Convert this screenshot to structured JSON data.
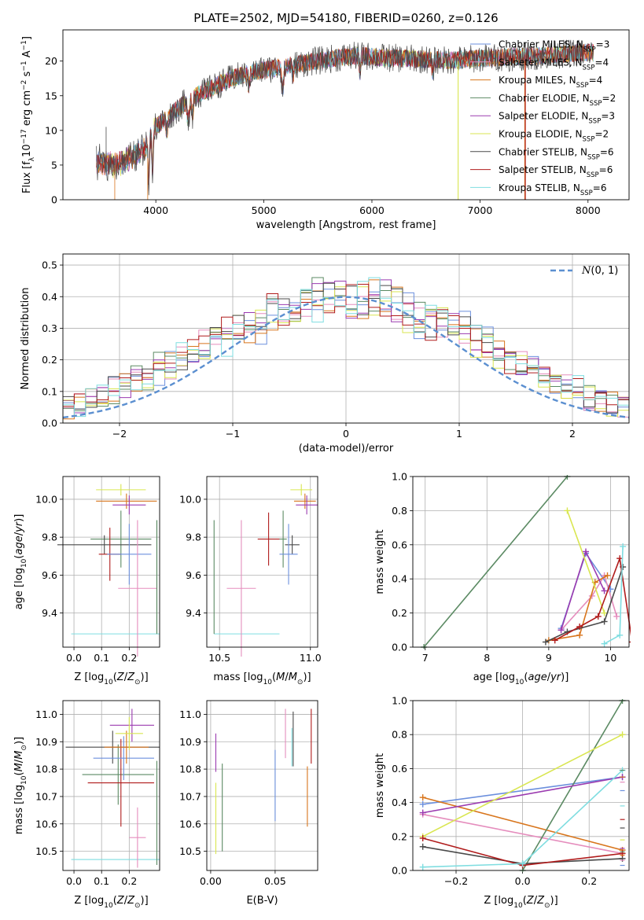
{
  "figure": {
    "title": "PLATE=2502, MJD=54180, FIBERID=0260, z=0.126"
  },
  "models": [
    {
      "name": "Chabrier MILES, N",
      "nssp": "=3",
      "color": "#6b8fdd"
    },
    {
      "name": "Salpeter MILES, N",
      "nssp": "=4",
      "color": "#e58dbd"
    },
    {
      "name": "Kroupa MILES, N",
      "nssp": "=4",
      "color": "#d8751c"
    },
    {
      "name": "Chabrier ELODIE, N",
      "nssp": "=2",
      "color": "#5b8a63"
    },
    {
      "name": "Salpeter ELODIE, N",
      "nssp": "=3",
      "color": "#9b3bb0"
    },
    {
      "name": "Kroupa ELODIE, N",
      "nssp": "=2",
      "color": "#d9e650"
    },
    {
      "name": "Chabrier STELIB, N",
      "nssp": "=6",
      "color": "#4a4a4a"
    },
    {
      "name": "Salpeter STELIB, N",
      "nssp": "=6",
      "color": "#b01c1c"
    },
    {
      "name": "Kroupa STELIB, N",
      "nssp": "=6",
      "color": "#7fdde0"
    }
  ],
  "chart_data": [
    {
      "id": "spectrum",
      "type": "line",
      "xlabel": "wavelength [Angstrom, rest frame]",
      "ylabel": "Flux [f_λ 10^-17 erg cm^-2 s^-1 A^-1]",
      "xlim": [
        3140,
        8380
      ],
      "ylim": [
        0,
        24.5
      ],
      "xticks": [
        4000,
        5000,
        6000,
        7000,
        8000
      ],
      "yticks": [
        0,
        5,
        10,
        15,
        20
      ],
      "legend": "right",
      "x_range": [
        3450,
        8050
      ],
      "continuum_knots": [
        [
          3450,
          5.4
        ],
        [
          3600,
          5.0
        ],
        [
          3700,
          5.5
        ],
        [
          3800,
          6.3
        ],
        [
          3900,
          7.5
        ],
        [
          4000,
          10.5
        ],
        [
          4150,
          12.4
        ],
        [
          4300,
          14.4
        ],
        [
          4500,
          16.0
        ],
        [
          4700,
          17.5
        ],
        [
          4900,
          18.4
        ],
        [
          5100,
          19.0
        ],
        [
          5400,
          19.8
        ],
        [
          5700,
          20.5
        ],
        [
          5900,
          20.8
        ],
        [
          6100,
          20.5
        ],
        [
          6400,
          20.3
        ],
        [
          6700,
          20.1
        ],
        [
          7000,
          20.4
        ],
        [
          7300,
          20.6
        ],
        [
          7600,
          20.8
        ],
        [
          7900,
          21.2
        ],
        [
          8050,
          21.2
        ]
      ],
      "absorption_features": [
        [
          3934,
          6.0,
          8
        ],
        [
          3969,
          6.0,
          8
        ],
        [
          4102,
          2.0,
          10
        ],
        [
          4300,
          3.0,
          15
        ],
        [
          4340,
          2.5,
          10
        ],
        [
          4861,
          2.0,
          10
        ],
        [
          5175,
          3.0,
          15
        ],
        [
          5270,
          1.5,
          10
        ],
        [
          5890,
          2.5,
          10
        ],
        [
          6563,
          2.0,
          10
        ]
      ],
      "noise_amplitude": 1.3,
      "deep_spikes": [
        [
          3940,
          0
        ],
        [
          6800,
          0
        ],
        [
          7420,
          0
        ]
      ],
      "vlines": [
        [
          6798,
          "#d9e650"
        ],
        [
          7415,
          "#d8751c"
        ],
        [
          7420,
          "#b01c1c"
        ]
      ]
    },
    {
      "id": "residuals",
      "type": "histogram",
      "xlabel": "(data-model)/error",
      "ylabel": "Normed distribution",
      "xlim": [
        -2.5,
        2.5
      ],
      "ylim": [
        0,
        0.535
      ],
      "xticks": [
        -2,
        -1,
        0,
        1,
        2
      ],
      "yticks": [
        0.0,
        0.1,
        0.2,
        0.3,
        0.4,
        0.5
      ],
      "grid": true,
      "bin_width": 0.1,
      "reference": {
        "label": "N(0,1)",
        "style": "dashed",
        "color": "#5b8fd0"
      },
      "legend": "top-right",
      "bin_values": {
        "model_a": [
          0.02,
          0.02,
          0.03,
          0.03,
          0.04,
          0.05,
          0.05,
          0.07,
          0.09,
          0.11,
          0.12,
          0.13,
          0.15,
          0.16,
          0.18,
          0.21,
          0.21,
          0.24,
          0.27,
          0.26,
          0.3,
          0.31,
          0.3,
          0.34,
          0.38,
          0.37,
          0.39,
          0.38,
          0.4,
          0.41,
          0.38,
          0.39,
          0.43,
          0.4,
          0.38,
          0.36,
          0.31,
          0.33,
          0.33,
          0.31,
          0.3,
          0.28,
          0.26,
          0.22,
          0.21,
          0.19,
          0.18,
          0.16,
          0.13,
          0.12,
          0.11,
          0.08,
          0.07,
          0.06,
          0.05,
          0.04,
          0.03,
          0.03,
          0.02,
          0.02
        ],
        "model_b": [
          0.02,
          0.02,
          0.03,
          0.04,
          0.04,
          0.05,
          0.06,
          0.07,
          0.09,
          0.1,
          0.12,
          0.14,
          0.15,
          0.18,
          0.18,
          0.2,
          0.23,
          0.25,
          0.26,
          0.3,
          0.29,
          0.32,
          0.34,
          0.35,
          0.35,
          0.38,
          0.37,
          0.41,
          0.4,
          0.42,
          0.41,
          0.4,
          0.39,
          0.38,
          0.38,
          0.34,
          0.35,
          0.31,
          0.32,
          0.29,
          0.28,
          0.25,
          0.24,
          0.22,
          0.19,
          0.19,
          0.16,
          0.15,
          0.12,
          0.12,
          0.1,
          0.08,
          0.07,
          0.06,
          0.05,
          0.04,
          0.03,
          0.03,
          0.02,
          0.02
        ]
      }
    },
    {
      "id": "age_vs_Z",
      "type": "errorbar",
      "xlabel": "Z [log10(Z/Z⊙)]",
      "ylabel": "age  [log10(age/yr)]",
      "xlim": [
        -0.04,
        0.31
      ],
      "ylim": [
        9.22,
        10.12
      ],
      "xticks": [
        0.0,
        0.1,
        0.2
      ],
      "yticks": [
        9.4,
        9.6,
        9.8,
        10.0
      ],
      "grid": true,
      "points": [
        [
          0.17,
          9.79,
          0.11,
          0.15
        ],
        [
          0.11,
          9.76,
          0.17,
          0.05
        ],
        [
          0.13,
          9.71,
          0.04,
          0.14
        ],
        [
          0.15,
          9.29,
          0.16,
          0.0
        ],
        [
          0.2,
          9.71,
          0.08,
          0.16
        ],
        [
          0.23,
          9.53,
          0.07,
          0.36
        ],
        [
          0.19,
          9.99,
          0.11,
          0.04
        ],
        [
          0.2,
          9.97,
          0.06,
          0.05
        ],
        [
          0.17,
          10.05,
          0.09,
          0.03
        ]
      ],
      "v_only": [
        [
          0.3,
          9.59,
          0.3
        ],
        [
          0.3,
          9.59,
          0.3
        ]
      ]
    },
    {
      "id": "age_vs_mass",
      "type": "errorbar",
      "xlabel": "mass [log10(M/M⊙)]",
      "ylabel": "",
      "xlim": [
        10.43,
        11.04
      ],
      "ylim": [
        9.22,
        10.12
      ],
      "xticks": [
        10.5,
        11.0
      ],
      "yticks": [
        9.4,
        9.6,
        9.8,
        10.0
      ],
      "grid": true,
      "points": [
        [
          10.85,
          9.79,
          0.02,
          0.15
        ],
        [
          10.9,
          9.76,
          0.04,
          0.05
        ],
        [
          10.77,
          9.79,
          0.06,
          0.14
        ],
        [
          10.65,
          9.29,
          0.18,
          0.0
        ],
        [
          10.88,
          9.71,
          0.05,
          0.16
        ],
        [
          10.62,
          9.53,
          0.08,
          0.36
        ],
        [
          10.97,
          9.99,
          0.06,
          0.04
        ],
        [
          10.98,
          9.97,
          0.06,
          0.05
        ],
        [
          10.95,
          10.05,
          0.06,
          0.03
        ]
      ],
      "v_only": [
        [
          10.47,
          9.59,
          0.3
        ]
      ]
    },
    {
      "id": "massweight_vs_age",
      "type": "line",
      "xlabel": "age  [log10(age/yr)]",
      "ylabel": "mass weight",
      "xlim": [
        6.8,
        10.3
      ],
      "ylim": [
        0,
        1.0
      ],
      "xticks": [
        7,
        8,
        9,
        10
      ],
      "yticks": [
        0.0,
        0.2,
        0.4,
        0.6,
        0.8,
        1.0
      ],
      "grid": true,
      "series": [
        {
          "x": [
            9.2,
            9.6,
            10.0
          ],
          "y": [
            0.11,
            0.55,
            0.34
          ]
        },
        {
          "x": [
            9.2,
            9.7,
            9.9,
            10.1
          ],
          "y": [
            0.1,
            0.3,
            0.42,
            0.18
          ]
        },
        {
          "x": [
            9.0,
            9.5,
            9.75,
            9.95
          ],
          "y": [
            0.04,
            0.07,
            0.38,
            0.42
          ]
        },
        {
          "x": [
            6.98,
            9.3
          ],
          "y": [
            0.0,
            1.0
          ]
        },
        {
          "x": [
            9.2,
            9.6,
            9.9
          ],
          "y": [
            0.1,
            0.56,
            0.33
          ]
        },
        {
          "x": [
            9.3,
            9.9
          ],
          "y": [
            0.8,
            0.2
          ]
        },
        {
          "x": [
            8.95,
            9.3,
            9.9,
            10.2
          ],
          "y": [
            0.03,
            0.09,
            0.15,
            0.47
          ]
        },
        {
          "x": [
            9.1,
            9.5,
            9.8,
            10.15,
            10.35
          ],
          "y": [
            0.04,
            0.12,
            0.18,
            0.52,
            0.03
          ]
        },
        {
          "x": [
            9.9,
            10.15,
            10.2
          ],
          "y": [
            0.02,
            0.07,
            0.59
          ]
        }
      ]
    },
    {
      "id": "mass_vs_Z",
      "type": "errorbar",
      "xlabel": "Z [log10(Z/Z⊙)]",
      "ylabel": "mass [log10(M/M⊙)]",
      "xlim": [
        -0.04,
        0.31
      ],
      "ylim": [
        10.43,
        11.05
      ],
      "xticks": [
        0.0,
        0.1,
        0.2
      ],
      "yticks": [
        10.5,
        10.6,
        10.7,
        10.8,
        10.9,
        11.0
      ],
      "grid": true,
      "points": [
        [
          0.16,
          10.78,
          0.13,
          0.11
        ],
        [
          0.14,
          10.88,
          0.17,
          0.06
        ],
        [
          0.17,
          10.75,
          0.12,
          0.16
        ],
        [
          0.15,
          10.47,
          0.16,
          0.0
        ],
        [
          0.18,
          10.84,
          0.11,
          0.08
        ],
        [
          0.23,
          10.55,
          0.03,
          0.11
        ],
        [
          0.19,
          10.88,
          0.08,
          0.06
        ],
        [
          0.21,
          10.96,
          0.08,
          0.06
        ],
        [
          0.2,
          10.93,
          0.05,
          0.06
        ]
      ],
      "v_only": [
        [
          0.3,
          10.64,
          0.19
        ]
      ]
    },
    {
      "id": "mass_vs_EBV",
      "type": "errorbar",
      "xlabel": "E(B-V)",
      "ylabel": "",
      "xlim": [
        -0.003,
        0.083
      ],
      "ylim": [
        10.43,
        11.05
      ],
      "xticks": [
        0.0,
        0.05
      ],
      "yticks": [
        10.5,
        10.6,
        10.7,
        10.8,
        10.9,
        11.0
      ],
      "grid": true,
      "vlines": [
        [
          0.05,
          10.74,
          0.13
        ],
        [
          0.058,
          10.93,
          0.09
        ],
        [
          0.075,
          10.7,
          0.11
        ],
        [
          0.009,
          10.66,
          0.16
        ],
        [
          0.004,
          10.86,
          0.07
        ],
        [
          0.004,
          10.62,
          0.13
        ],
        [
          0.064,
          10.91,
          0.1
        ],
        [
          0.078,
          10.92,
          0.1
        ],
        [
          0.063,
          10.88,
          0.07
        ]
      ]
    },
    {
      "id": "massweight_vs_Z",
      "type": "line",
      "xlabel": "Z [log10(Z/Z⊙)]",
      "ylabel": "mass weight",
      "xlim": [
        -0.33,
        0.32
      ],
      "ylim": [
        0,
        1.0
      ],
      "xticks": [
        -0.2,
        0.0,
        0.2
      ],
      "yticks": [
        0.0,
        0.2,
        0.4,
        0.6,
        0.8,
        1.0
      ],
      "grid": true,
      "series": [
        {
          "x": [
            -0.3,
            0.3
          ],
          "y": [
            0.39,
            0.55
          ]
        },
        {
          "x": [
            -0.3,
            0.3
          ],
          "y": [
            0.33,
            0.1
          ]
        },
        {
          "x": [
            -0.3,
            0.3
          ],
          "y": [
            0.43,
            0.12
          ]
        },
        {
          "x": [
            0.0,
            0.3
          ],
          "y": [
            0.0,
            1.0
          ]
        },
        {
          "x": [
            -0.3,
            0.3
          ],
          "y": [
            0.34,
            0.55
          ]
        },
        {
          "x": [
            -0.3,
            0.3
          ],
          "y": [
            0.2,
            0.8
          ]
        },
        {
          "x": [
            -0.3,
            0.0,
            0.3
          ],
          "y": [
            0.14,
            0.04,
            0.07
          ]
        },
        {
          "x": [
            -0.3,
            0.0,
            0.3
          ],
          "y": [
            0.19,
            0.03,
            0.1
          ]
        },
        {
          "x": [
            -0.3,
            0.0,
            0.3
          ],
          "y": [
            0.02,
            0.04,
            0.59
          ]
        }
      ],
      "tick_marks_at_right_x": 0.3,
      "tick_marks_y": [
        0.03,
        0.06,
        0.09,
        0.11,
        0.13,
        0.18,
        0.25,
        0.3,
        0.38,
        0.47,
        0.52,
        0.55,
        0.59
      ]
    }
  ]
}
